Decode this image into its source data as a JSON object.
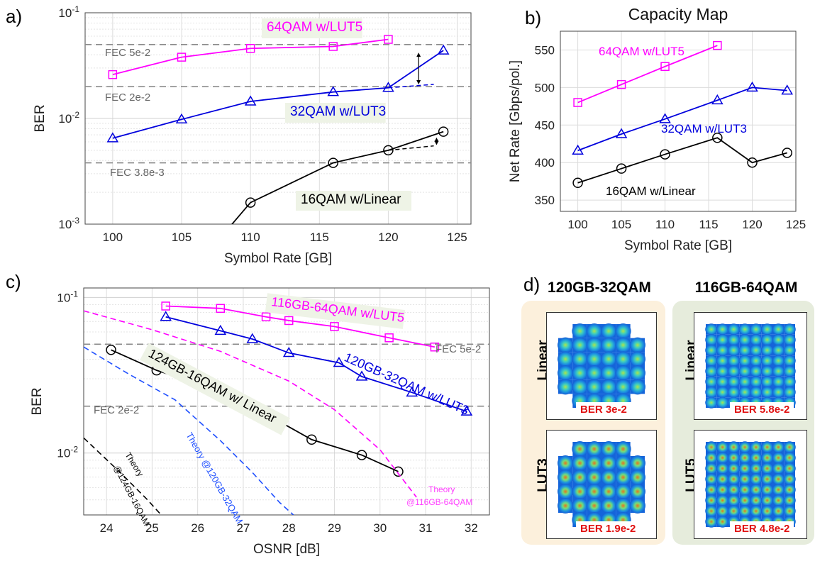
{
  "panels": {
    "a": "a)",
    "b": "b)",
    "c": "c)",
    "d": "d)"
  },
  "chart_data": [
    {
      "panel": "a",
      "type": "line",
      "ylabel": "BER",
      "xlabel": "Symbol Rate [GB]",
      "ylog": true,
      "xlim": [
        98,
        126
      ],
      "ylim": [
        0.001,
        0.1
      ],
      "xticks": [
        "100",
        "105",
        "110",
        "115",
        "120",
        "125"
      ],
      "yticks": [
        "10^-3",
        "10^-2",
        "10^-1"
      ],
      "grid": true,
      "series": [
        {
          "name": "64QAM w/LUT5",
          "color": "#ff00ff",
          "marker": "square",
          "x": [
            100,
            105,
            110,
            116,
            120
          ],
          "y": [
            0.026,
            0.038,
            0.046,
            0.048,
            0.056
          ]
        },
        {
          "name": "32QAM w/LUT3",
          "color": "#0000dd",
          "marker": "triangle",
          "x": [
            100,
            105,
            110,
            116,
            120,
            124
          ],
          "y": [
            0.0065,
            0.0098,
            0.0145,
            0.0178,
            0.0195,
            0.044
          ]
        },
        {
          "name": "16QAM w/Linear",
          "color": "#000000",
          "marker": "circle",
          "x": [
            108.2,
            110,
            116,
            120,
            124
          ],
          "y": [
            0.00085,
            0.0016,
            0.0038,
            0.005,
            0.0075
          ]
        }
      ],
      "thresholds": [
        {
          "label": "FEC 5e-2",
          "value": 0.05
        },
        {
          "label": "FEC 2e-2",
          "value": 0.02
        },
        {
          "label": "FEC 3.8e-3",
          "value": 0.0038
        }
      ]
    },
    {
      "panel": "b",
      "type": "line",
      "title": "Capacity Map",
      "ylabel": "Net Rate [Gbps/pol.]",
      "xlabel": "Symbol Rate [GB]",
      "xlim": [
        98,
        125
      ],
      "ylim": [
        335,
        575
      ],
      "xticks": [
        "100",
        "105",
        "110",
        "115",
        "120",
        "125"
      ],
      "yticks": [
        "350",
        "400",
        "450",
        "500",
        "550"
      ],
      "grid": true,
      "series": [
        {
          "name": "64QAM w/LUT5",
          "color": "#ff00ff",
          "marker": "square",
          "x": [
            100,
            105,
            110,
            116
          ],
          "y": [
            480,
            504,
            528,
            556
          ]
        },
        {
          "name": "32QAM w/LUT3",
          "color": "#0000dd",
          "marker": "triangle",
          "x": [
            100,
            105,
            110,
            116,
            120,
            124
          ],
          "y": [
            416,
            438,
            458,
            483,
            500,
            496
          ]
        },
        {
          "name": "16QAM w/Linear",
          "color": "#000000",
          "marker": "circle",
          "x": [
            100,
            105,
            110,
            116,
            120,
            124
          ],
          "y": [
            373,
            392,
            411,
            433,
            400,
            413
          ]
        }
      ]
    },
    {
      "panel": "c",
      "type": "line",
      "ylabel": "BER",
      "xlabel": "OSNR [dB]",
      "ylog": true,
      "xlim": [
        23.5,
        32.4
      ],
      "ylim": [
        0.004,
        0.115
      ],
      "xticks": [
        "24",
        "25",
        "26",
        "27",
        "28",
        "29",
        "30",
        "31",
        "32"
      ],
      "yticks": [
        "10^-2",
        "10^-1"
      ],
      "grid": true,
      "series": [
        {
          "name": "116GB-64QAM w/LUT5",
          "color": "#ff00ff",
          "marker": "square",
          "x": [
            25.3,
            26.5,
            27.5,
            28,
            29,
            30.2,
            31.2
          ],
          "y": [
            0.088,
            0.085,
            0.075,
            0.071,
            0.065,
            0.055,
            0.048
          ]
        },
        {
          "name": "120GB-32QAM w/LUT3",
          "color": "#0000dd",
          "marker": "triangle",
          "x": [
            25.3,
            26.5,
            27.2,
            28,
            29.1,
            29.6,
            30.7,
            31.9
          ],
          "y": [
            0.075,
            0.061,
            0.054,
            0.044,
            0.038,
            0.031,
            0.0245,
            0.0185
          ]
        },
        {
          "name": "124GB-16QAM w/ Linear",
          "color": "#000000",
          "marker": "circle",
          "x": [
            24.1,
            25.1,
            26.5,
            27.5,
            28.5,
            29.6,
            30.4
          ],
          "y": [
            0.046,
            0.034,
            0.025,
            0.0178,
            0.0122,
            0.0097,
            0.0076
          ]
        },
        {
          "name": "Theory @116GB-64QAM",
          "color": "#ff00ff",
          "dashed": true,
          "x": [
            23.5,
            25,
            26.5,
            28,
            29,
            30,
            30.8
          ],
          "y": [
            0.082,
            0.062,
            0.045,
            0.029,
            0.019,
            0.0105,
            0.0052
          ]
        },
        {
          "name": "Theory @120GB-32QAM",
          "color": "#2050ff",
          "dashed": true,
          "x": [
            23.5,
            24.5,
            25.5,
            26.5,
            27.2,
            27.8,
            28.1
          ],
          "y": [
            0.048,
            0.032,
            0.022,
            0.012,
            0.0075,
            0.0048,
            0.004
          ]
        },
        {
          "name": "Theory @124GB-16QAM",
          "color": "#000000",
          "dashed": true,
          "x": [
            23.5,
            24.3,
            24.9,
            25.2
          ],
          "y": [
            0.0125,
            0.0075,
            0.005,
            0.004
          ]
        }
      ],
      "thresholds": [
        {
          "label": "FEC 5e-2",
          "value": 0.05
        },
        {
          "label": "FEC 2e-2",
          "value": 0.02
        }
      ]
    }
  ],
  "labels": {
    "a_64": "64QAM w/LUT5",
    "a_32": "32QAM w/LUT3",
    "a_16": "16QAM w/Linear",
    "a_fec1": "FEC 5e-2",
    "a_fec2": "FEC 2e-2",
    "a_fec3": "FEC 3.8e-3",
    "b_64": "64QAM w/LUT5",
    "b_32": "32QAM w/LUT3",
    "b_16": "16QAM w/Linear",
    "c_64": "116GB-64QAM w/LUT5",
    "c_32": "120GB-32QAM w/LUT3",
    "c_16": "124GB-16QAM w/ Linear",
    "c_fec1": "FEC 5e-2",
    "c_fec2": "FEC 2e-2",
    "c_th16a": "Theory",
    "c_th16b": "@124GB-16QAM",
    "c_th32": "Theory @120GB-32QAM",
    "c_th64a": "Theory",
    "c_th64b": "@116GB-64QAM"
  },
  "constellations": {
    "left_title": "120GB-32QAM",
    "right_title": "116GB-64QAM",
    "left_top_label": "Linear",
    "left_bottom_label": "LUT3",
    "right_top_label": "Linear",
    "right_bottom_label": "LUT5",
    "left_top_ber": "BER 3e-2",
    "left_bottom_ber": "BER 1.9e-2",
    "right_top_ber": "BER 5.8e-2",
    "right_bottom_ber": "BER 4.8e-2",
    "left_bg": "#fcf0dc",
    "right_bg": "#e6ecdc"
  }
}
